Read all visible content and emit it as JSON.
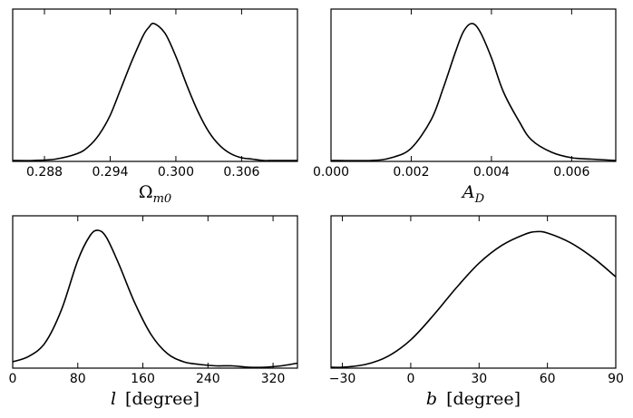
{
  "chart_data": [
    {
      "type": "line",
      "xlabel": "Ω_m0",
      "xlabel_main": "Ω",
      "xlabel_sub": "m0",
      "xlim": [
        0.2851,
        0.3111
      ],
      "xticks": [
        0.288,
        0.294,
        0.3,
        0.306
      ],
      "xtick_labels": [
        "0.288",
        "0.294",
        "0.300",
        "0.306"
      ],
      "yticks": [],
      "series": [
        {
          "x": [
            0.2851,
            0.287,
            0.289,
            0.291,
            0.292,
            0.293,
            0.294,
            0.295,
            0.296,
            0.297,
            0.2975,
            0.298,
            0.299,
            0.3,
            0.301,
            0.302,
            0.303,
            0.304,
            0.305,
            0.306,
            0.307,
            0.308,
            0.309,
            0.3111
          ],
          "y": [
            0.0,
            0.0,
            0.01,
            0.05,
            0.1,
            0.19,
            0.33,
            0.53,
            0.73,
            0.91,
            0.97,
            1.0,
            0.93,
            0.76,
            0.55,
            0.36,
            0.21,
            0.11,
            0.05,
            0.02,
            0.01,
            0.0,
            0.0,
            0.0
          ]
        }
      ]
    },
    {
      "type": "line",
      "xlabel": "A_D",
      "xlabel_main": "A",
      "xlabel_sub": "D",
      "xlim": [
        0.0,
        0.0071
      ],
      "xticks": [
        0.0,
        0.002,
        0.004,
        0.006
      ],
      "xtick_labels": [
        "0.000",
        "0.002",
        "0.004",
        "0.006"
      ],
      "yticks": [],
      "series": [
        {
          "x": [
            0.0,
            0.001,
            0.0015,
            0.002,
            0.0025,
            0.0028,
            0.0031,
            0.0033,
            0.0035,
            0.0037,
            0.004,
            0.0043,
            0.0047,
            0.005,
            0.0055,
            0.006,
            0.0065,
            0.0071
          ],
          "y": [
            0.0,
            0.0,
            0.02,
            0.09,
            0.3,
            0.53,
            0.79,
            0.94,
            1.0,
            0.95,
            0.75,
            0.5,
            0.28,
            0.15,
            0.06,
            0.02,
            0.01,
            0.0
          ]
        }
      ]
    },
    {
      "type": "line",
      "xlabel": "l [degree]",
      "xlabel_main": "l",
      "xlabel_unit": "[degree]",
      "xlim": [
        0,
        350
      ],
      "xticks": [
        0,
        80,
        160,
        240,
        320
      ],
      "xtick_labels": [
        "0",
        "80",
        "160",
        "240",
        "320"
      ],
      "yticks": [],
      "series": [
        {
          "x": [
            0,
            20,
            40,
            60,
            80,
            95,
            105,
            115,
            130,
            150,
            170,
            190,
            210,
            230,
            250,
            270,
            290,
            310,
            330,
            350
          ],
          "y": [
            0.04,
            0.08,
            0.18,
            0.42,
            0.78,
            0.96,
            1.0,
            0.95,
            0.76,
            0.47,
            0.24,
            0.1,
            0.04,
            0.02,
            0.01,
            0.01,
            0.0,
            0.0,
            0.01,
            0.03
          ]
        }
      ]
    },
    {
      "type": "line",
      "xlabel": "b [degree]",
      "xlabel_main": "b",
      "xlabel_unit": "[degree]",
      "xlim": [
        -35,
        90
      ],
      "xticks": [
        -30,
        0,
        30,
        60,
        90
      ],
      "xtick_labels": [
        "−30",
        "0",
        "30",
        "60",
        "90"
      ],
      "yticks": [],
      "series": [
        {
          "x": [
            -35,
            -30,
            -20,
            -10,
            0,
            10,
            20,
            30,
            40,
            50,
            55,
            60,
            70,
            80,
            90
          ],
          "y": [
            0.0,
            0.0,
            0.02,
            0.08,
            0.2,
            0.38,
            0.58,
            0.76,
            0.89,
            0.97,
            0.99,
            0.98,
            0.91,
            0.8,
            0.66
          ]
        }
      ]
    }
  ]
}
